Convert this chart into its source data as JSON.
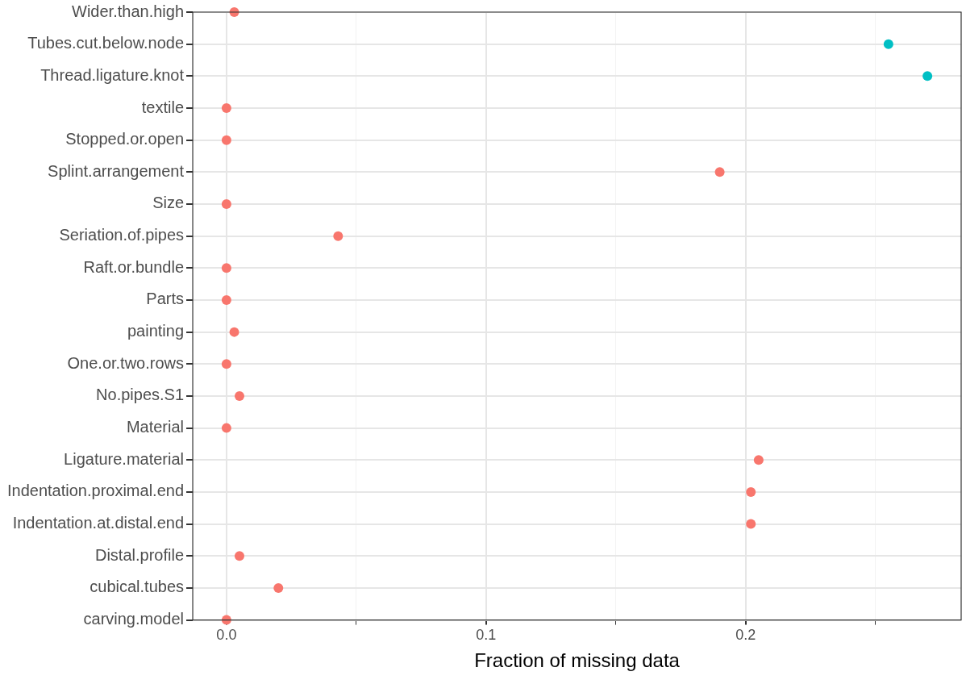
{
  "chart_data": {
    "type": "scatter",
    "orientation": "horizontal",
    "xlabel": "Fraction of missing data",
    "categories": [
      "Wider.than.high",
      "Tubes.cut.below.node",
      "Thread.ligature.knot",
      "textile",
      "Stopped.or.open",
      "Splint.arrangement",
      "Size",
      "Seriation.of.pipes",
      "Raft.or.bundle",
      "Parts",
      "painting",
      "One.or.two.rows",
      "No.pipes.S1",
      "Material",
      "Ligature.material",
      "Indentation.proximal.end",
      "Indentation.at.distal.end",
      "Distal.profile",
      "cubical.tubes",
      "carving.model"
    ],
    "values": [
      0.003,
      0.255,
      0.27,
      0,
      0,
      0.19,
      0,
      0.043,
      0,
      0,
      0.003,
      0,
      0.005,
      0,
      0.205,
      0.202,
      0.202,
      0.005,
      0.02,
      0
    ],
    "colors": [
      "#f8766d",
      "#00bfc4",
      "#00bfc4",
      "#f8766d",
      "#f8766d",
      "#f8766d",
      "#f8766d",
      "#f8766d",
      "#f8766d",
      "#f8766d",
      "#f8766d",
      "#f8766d",
      "#f8766d",
      "#f8766d",
      "#f8766d",
      "#f8766d",
      "#f8766d",
      "#f8766d",
      "#f8766d",
      "#f8766d"
    ],
    "xlim": [
      -0.013,
      0.283
    ],
    "xticks": [
      {
        "value": 0,
        "label": "0.0"
      },
      {
        "value": 0.05,
        "label": null
      },
      {
        "value": 0.1,
        "label": "0.1"
      },
      {
        "value": 0.15,
        "label": null
      },
      {
        "value": 0.2,
        "label": "0.2"
      },
      {
        "value": 0.25,
        "label": null
      }
    ],
    "grid": true,
    "marker": "circle"
  }
}
